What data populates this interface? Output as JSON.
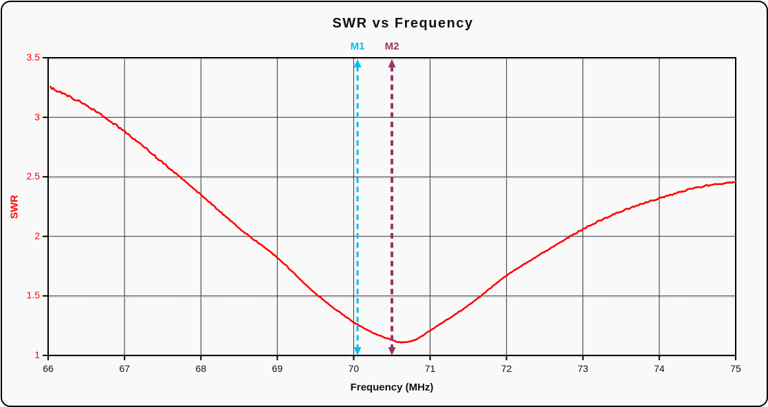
{
  "panel": {
    "background": "#f9f9f9",
    "border_color": "#000000"
  },
  "chart_data": {
    "type": "line",
    "title": "SWR vs Frequency",
    "xlabel": "Frequency (MHz)",
    "ylabel": "SWR",
    "xlim": [
      66,
      75
    ],
    "ylim": [
      1,
      3.5
    ],
    "grid": true,
    "legend": "none",
    "x_ticks": [
      66,
      67,
      68,
      69,
      70,
      71,
      72,
      73,
      74,
      75
    ],
    "y_ticks": [
      1,
      1.5,
      2,
      2.5,
      3,
      3.5
    ],
    "axis_colors": {
      "y_tick_text": "#ff0000",
      "x_tick_text": "#111111",
      "title_text": "#111111",
      "grid": "#2e2e2e"
    },
    "series": [
      {
        "name": "SWR",
        "color": "#ff0000",
        "style": "noisy-solid",
        "x": [
          66,
          66.5,
          67,
          67.5,
          68,
          68.5,
          69,
          69.5,
          70,
          70.25,
          70.5,
          70.6,
          70.8,
          71,
          71.5,
          72,
          72.5,
          73,
          73.5,
          74,
          74.5,
          75
        ],
        "y": [
          3.26,
          3.1,
          2.88,
          2.62,
          2.35,
          2.07,
          1.82,
          1.52,
          1.28,
          1.19,
          1.13,
          1.11,
          1.13,
          1.21,
          1.42,
          1.67,
          1.87,
          2.06,
          2.21,
          2.32,
          2.41,
          2.46
        ]
      }
    ],
    "annotations": {
      "min_swr": 1.11,
      "min_swr_freq": 70.6
    },
    "markers": [
      {
        "label": "M1",
        "freq": 70.05,
        "color": "#00bfef"
      },
      {
        "label": "M2",
        "freq": 70.5,
        "color": "#993366"
      }
    ]
  }
}
